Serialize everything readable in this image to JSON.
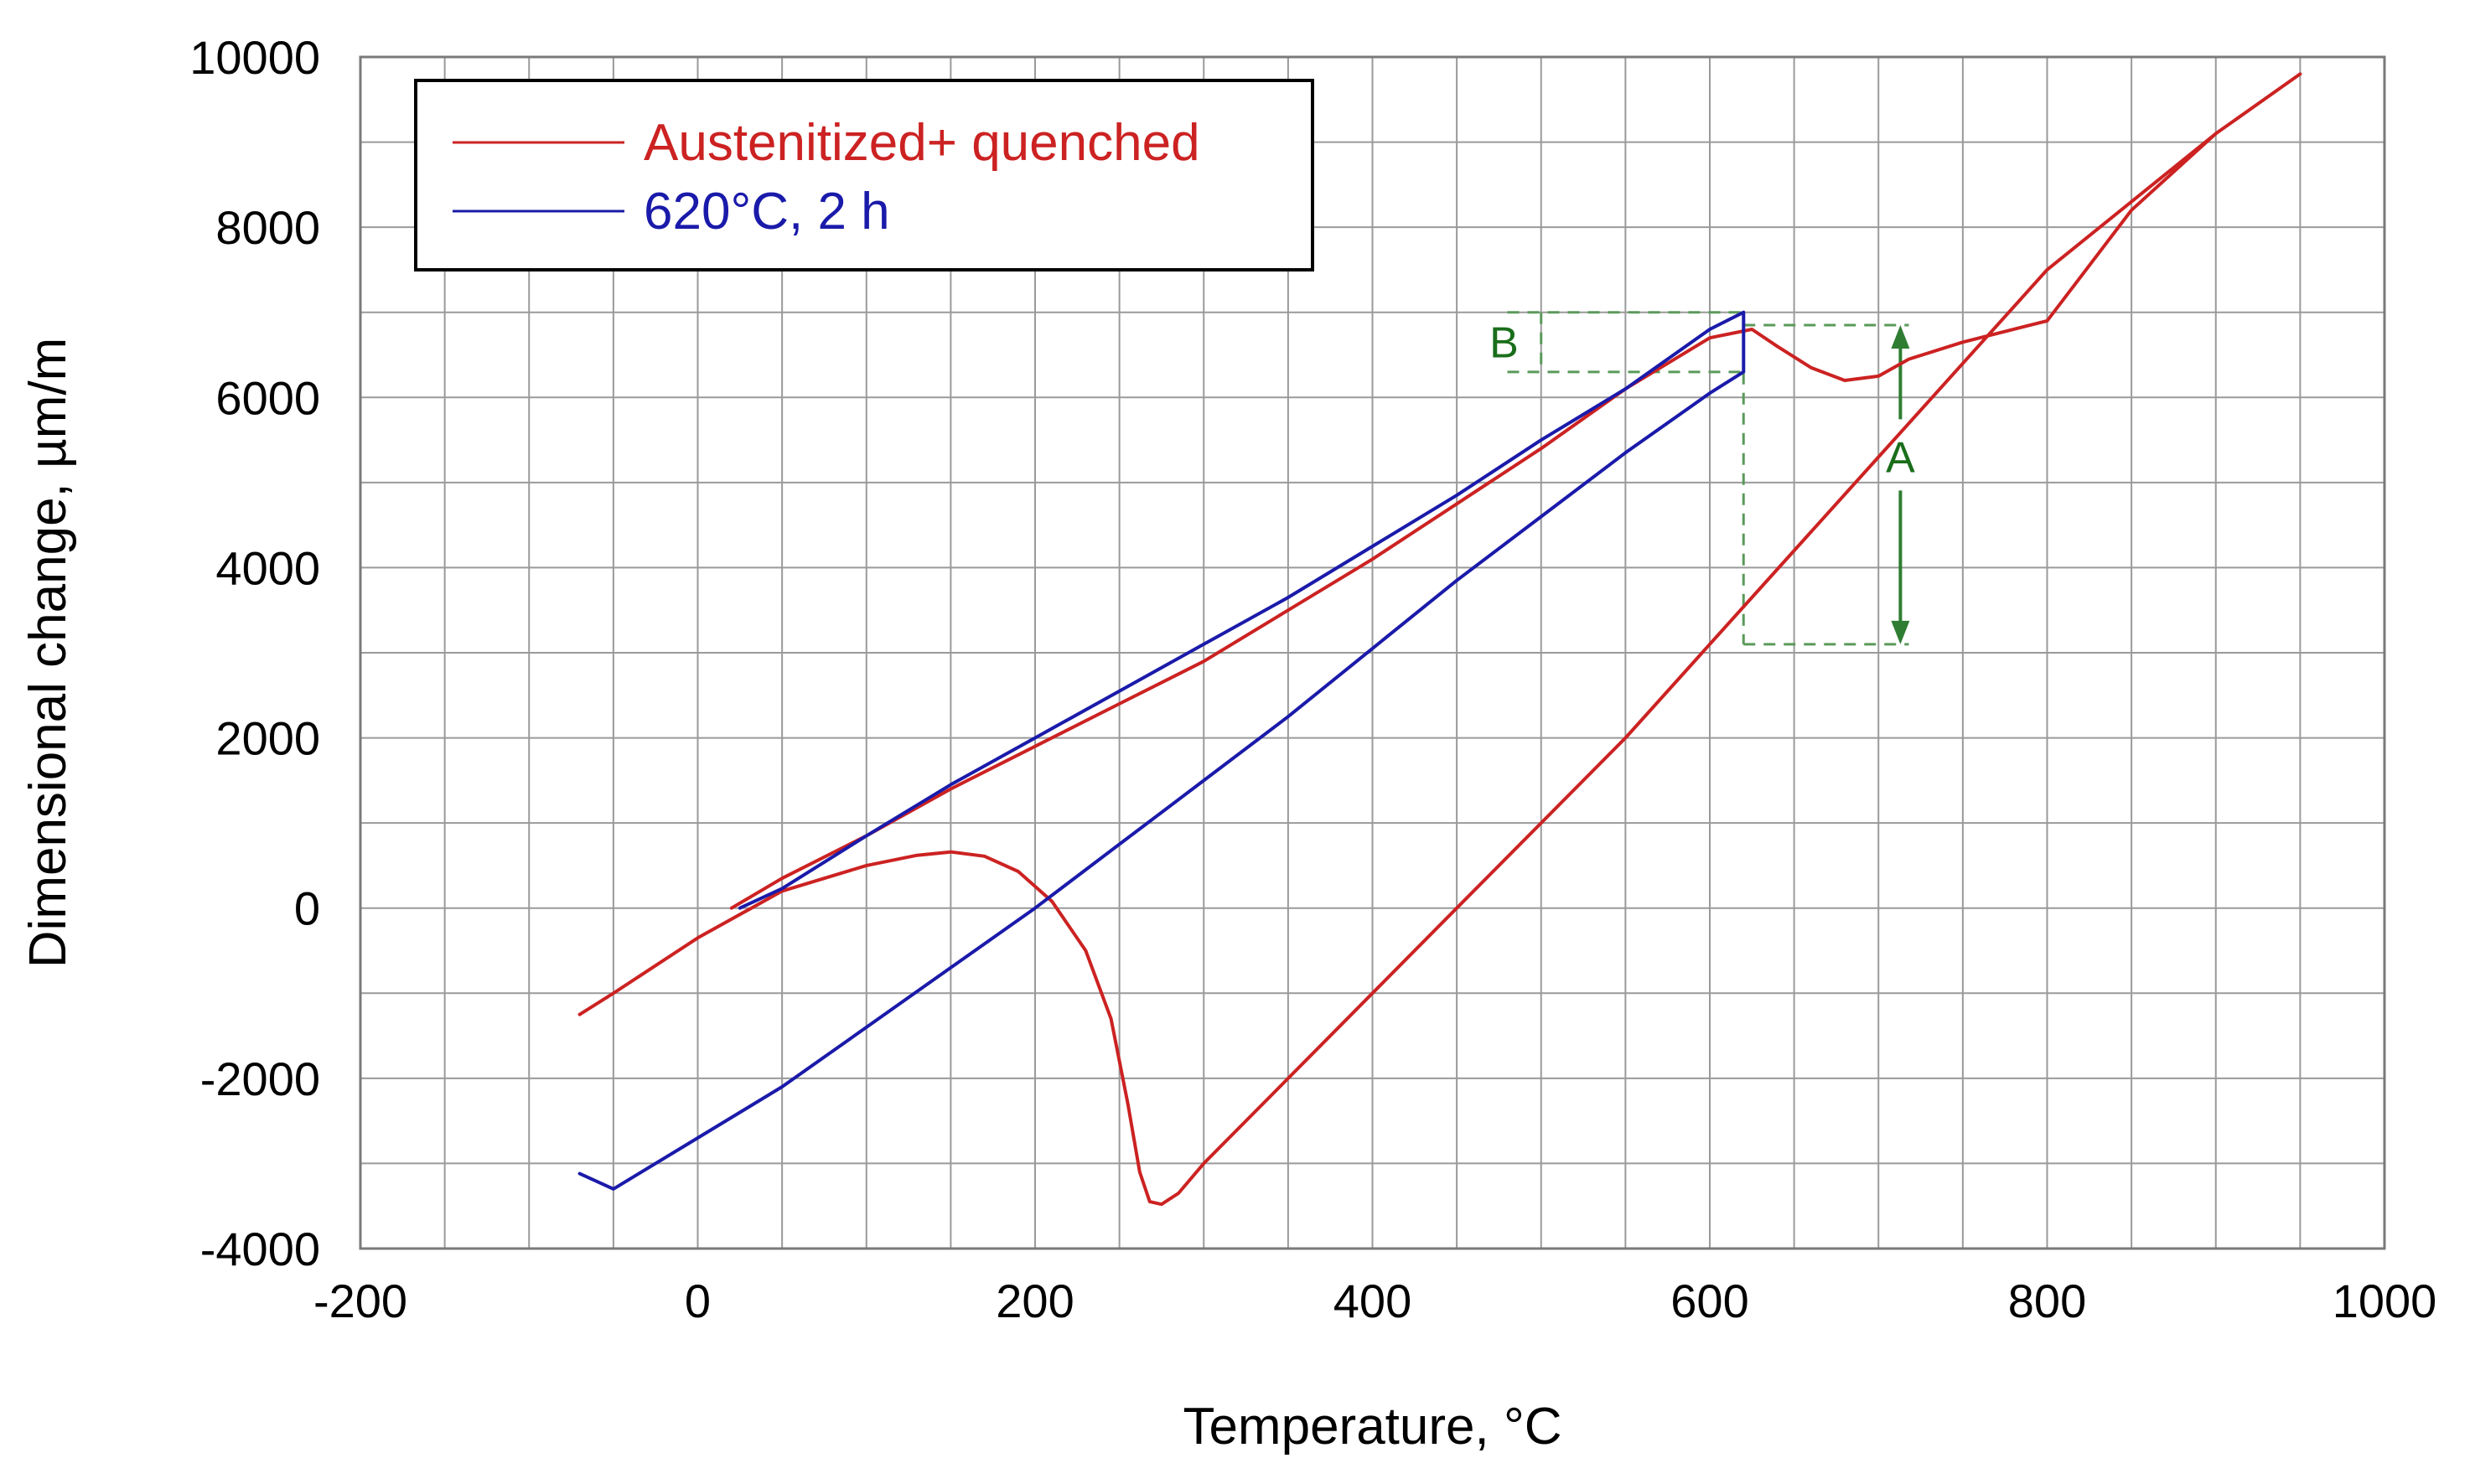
{
  "chart_data": {
    "type": "line",
    "title": "",
    "xlabel": "Temperature, °C",
    "ylabel": "Dimensional change, µm/m",
    "xlim": [
      -200,
      1000
    ],
    "ylim": [
      -4000,
      10000
    ],
    "grid": true,
    "x_major_ticks": [
      -200,
      0,
      200,
      400,
      600,
      800,
      1000
    ],
    "x_tick_labels": [
      "-200",
      "0",
      "200",
      "400",
      "600",
      "800",
      "1000"
    ],
    "x_minor_step": 50,
    "y_major_ticks": [
      -4000,
      -2000,
      0,
      2000,
      4000,
      6000,
      8000,
      10000
    ],
    "y_tick_labels": [
      "-4000",
      "-2000",
      "0",
      "2000",
      "4000",
      "6000",
      "8000",
      "10000"
    ],
    "y_minor_step": 1000,
    "legend_position": "top-left",
    "series": [
      {
        "name": "Austenitized+ quenched",
        "color": "#cc2222",
        "x": [
          -70,
          -50,
          0,
          50,
          100,
          130,
          150,
          170,
          190,
          210,
          230,
          245,
          255,
          262,
          268,
          275,
          285,
          300,
          350,
          400,
          450,
          500,
          550,
          600,
          650,
          700,
          750,
          800,
          850,
          900,
          950,
          900,
          850,
          800,
          750,
          718,
          700,
          680,
          660,
          640,
          625,
          600,
          550,
          500,
          450,
          400,
          350,
          300,
          250,
          200,
          150,
          100,
          50,
          20
        ],
        "y": [
          -1250,
          -1000,
          -350,
          200,
          500,
          620,
          660,
          610,
          430,
          80,
          -500,
          -1300,
          -2300,
          -3100,
          -3450,
          -3480,
          -3350,
          -3000,
          -2000,
          -1000,
          0,
          1000,
          2000,
          3100,
          4200,
          5300,
          6400,
          7500,
          8300,
          9100,
          9800,
          9100,
          8200,
          6900,
          6650,
          6450,
          6250,
          6200,
          6350,
          6600,
          6800,
          6700,
          6100,
          5400,
          4750,
          4100,
          3500,
          2900,
          2400,
          1900,
          1400,
          850,
          350,
          0
        ]
      },
      {
        "name": "620°C, 2 h",
        "color": "#1a1aaa",
        "x": [
          25,
          50,
          100,
          150,
          200,
          250,
          300,
          350,
          400,
          450,
          500,
          550,
          600,
          620,
          620,
          600,
          550,
          500,
          450,
          400,
          350,
          300,
          250,
          200,
          150,
          100,
          50,
          0,
          -50,
          -70
        ],
        "y": [
          0,
          230,
          850,
          1450,
          2000,
          2550,
          3100,
          3650,
          4250,
          4850,
          5500,
          6100,
          6800,
          7000,
          6300,
          6050,
          5350,
          4600,
          3850,
          3050,
          2250,
          1500,
          750,
          0,
          -700,
          -1400,
          -2100,
          -2700,
          -3300,
          -3120
        ]
      }
    ],
    "annotations": [
      {
        "label": "B",
        "description_values": {
          "x_from": 480,
          "x_to": 620,
          "y_top": 7000,
          "y_bottom": 6300
        }
      },
      {
        "label": "A",
        "description_values": {
          "x": 713,
          "y_top": 6850,
          "y_bottom": 3100
        }
      }
    ]
  }
}
